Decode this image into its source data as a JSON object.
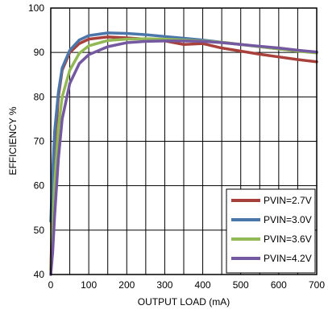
{
  "chart_data": {
    "type": "line",
    "xlabel": "OUTPUT  LOAD (mA)",
    "ylabel": "EFFICIENCY %",
    "xlim": [
      0,
      700
    ],
    "ylim": [
      40,
      100
    ],
    "x_ticks": [
      "0",
      "100",
      "200",
      "300",
      "400",
      "500",
      "600",
      "700"
    ],
    "y_ticks": [
      "40",
      "50",
      "60",
      "70",
      "80",
      "90",
      "100"
    ],
    "grid": true,
    "legend_position": "bottom-right",
    "series": [
      {
        "name": "PVIN=2.7V",
        "color": "#a8403c",
        "points": [
          [
            0,
            41
          ],
          [
            5,
            55
          ],
          [
            10,
            68
          ],
          [
            20,
            80
          ],
          [
            30,
            86
          ],
          [
            50,
            90
          ],
          [
            75,
            92
          ],
          [
            100,
            93
          ],
          [
            150,
            93.5
          ],
          [
            200,
            93.3
          ],
          [
            250,
            93
          ],
          [
            300,
            92.6
          ],
          [
            350,
            91.8
          ],
          [
            400,
            92
          ],
          [
            450,
            91
          ],
          [
            500,
            90.3
          ],
          [
            550,
            89.6
          ],
          [
            600,
            89
          ],
          [
            650,
            88.4
          ],
          [
            700,
            87.9
          ]
        ]
      },
      {
        "name": "PVIN=3.0V",
        "color": "#4a76aa",
        "points": [
          [
            0,
            52
          ],
          [
            5,
            63
          ],
          [
            10,
            72
          ],
          [
            20,
            81
          ],
          [
            30,
            86.5
          ],
          [
            50,
            90.5
          ],
          [
            75,
            92.8
          ],
          [
            100,
            93.8
          ],
          [
            150,
            94.4
          ],
          [
            200,
            94.3
          ],
          [
            250,
            94
          ],
          [
            300,
            93.6
          ],
          [
            350,
            93.2
          ],
          [
            400,
            92.8
          ],
          [
            450,
            92.3
          ],
          [
            500,
            91.8
          ],
          [
            550,
            91.3
          ],
          [
            600,
            90.8
          ],
          [
            650,
            90.4
          ],
          [
            700,
            90
          ]
        ]
      },
      {
        "name": "PVIN=3.6V",
        "color": "#92b954",
        "points": [
          [
            0,
            40
          ],
          [
            5,
            50
          ],
          [
            10,
            60
          ],
          [
            20,
            73
          ],
          [
            30,
            80
          ],
          [
            50,
            86
          ],
          [
            75,
            89.8
          ],
          [
            100,
            91.5
          ],
          [
            150,
            92.7
          ],
          [
            200,
            93
          ],
          [
            250,
            93.1
          ],
          [
            300,
            93
          ],
          [
            350,
            92.8
          ],
          [
            400,
            92.6
          ],
          [
            450,
            92.3
          ],
          [
            500,
            91.8
          ],
          [
            550,
            91.3
          ],
          [
            600,
            90.8
          ],
          [
            650,
            90.3
          ],
          [
            700,
            89.9
          ]
        ]
      },
      {
        "name": "PVIN=4.2V",
        "color": "#7458a0",
        "points": [
          [
            0,
            40
          ],
          [
            5,
            45
          ],
          [
            10,
            53
          ],
          [
            20,
            66
          ],
          [
            30,
            75
          ],
          [
            50,
            83
          ],
          [
            75,
            87.5
          ],
          [
            100,
            89.5
          ],
          [
            150,
            91.3
          ],
          [
            200,
            92.2
          ],
          [
            250,
            92.5
          ],
          [
            300,
            92.6
          ],
          [
            350,
            92.6
          ],
          [
            400,
            92.5
          ],
          [
            450,
            92.2
          ],
          [
            500,
            91.8
          ],
          [
            550,
            91.4
          ],
          [
            600,
            91
          ],
          [
            650,
            90.5
          ],
          [
            700,
            90.1
          ]
        ]
      }
    ]
  }
}
